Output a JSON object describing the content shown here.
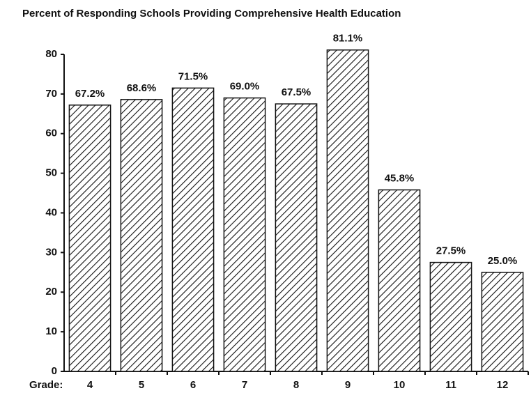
{
  "chart_data": {
    "type": "bar",
    "title": "Percent of Responding Schools Providing Comprehensive Health Education",
    "x_label": "Grade:",
    "categories": [
      "4",
      "5",
      "6",
      "7",
      "8",
      "9",
      "10",
      "11",
      "12"
    ],
    "values": [
      67.2,
      68.6,
      71.5,
      69.0,
      67.5,
      81.1,
      45.8,
      27.5,
      25.0
    ],
    "value_labels": [
      "67.2%",
      "68.6%",
      "71.5%",
      "69.0%",
      "67.5%",
      "81.1%",
      "45.8%",
      "27.5%",
      "25.0%"
    ],
    "color": "#111111",
    "ylim": [
      0,
      80
    ],
    "yticks": [
      0,
      10,
      20,
      30,
      40,
      50,
      60,
      70,
      80
    ],
    "grid": false
  }
}
